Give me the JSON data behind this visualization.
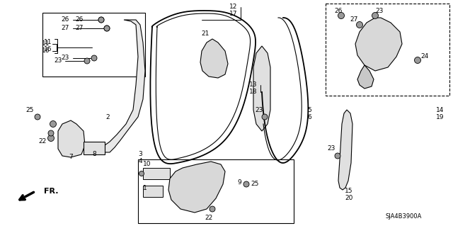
{
  "bg_color": "#ffffff",
  "line_color": "#000000",
  "diagram_id": "SJA4B3900A",
  "arrow_label": "FR.",
  "figsize": [
    6.4,
    3.19
  ],
  "dpi": 100
}
